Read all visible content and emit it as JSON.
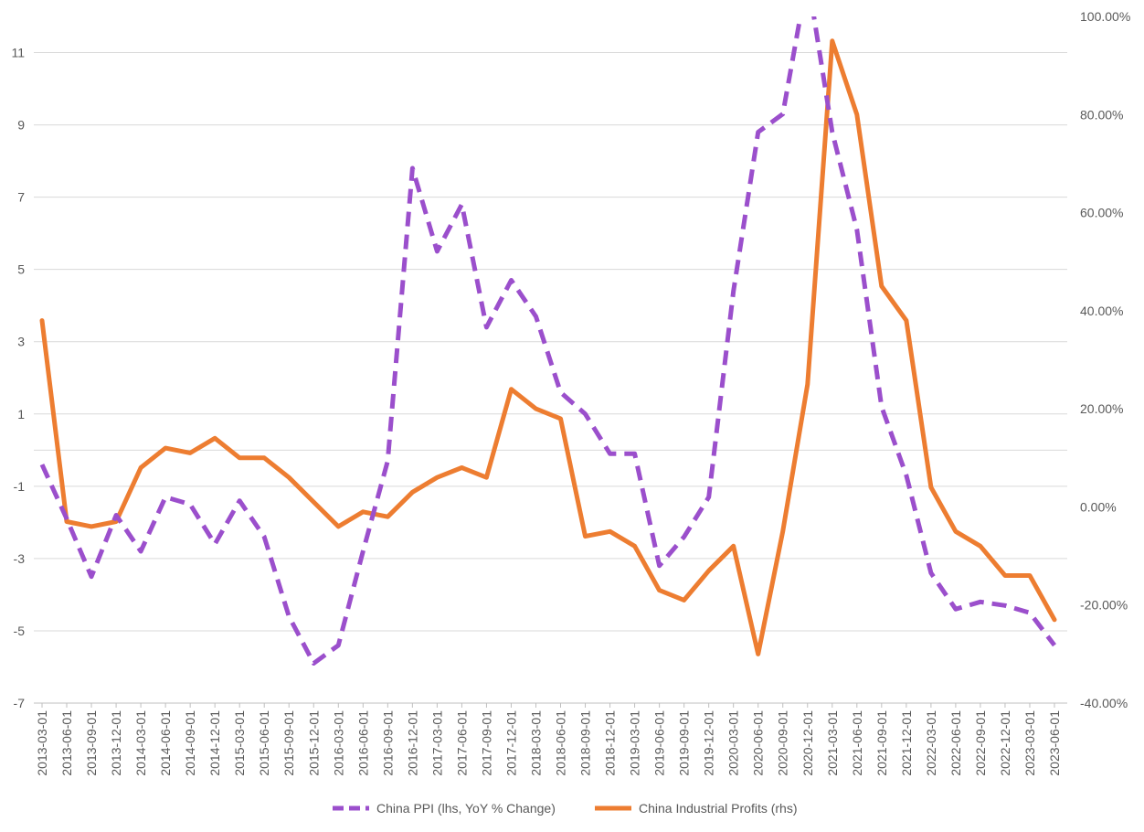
{
  "chart_data": {
    "type": "line",
    "x": [
      "2013-03-01",
      "2013-06-01",
      "2013-09-01",
      "2013-12-01",
      "2014-03-01",
      "2014-06-01",
      "2014-09-01",
      "2014-12-01",
      "2015-03-01",
      "2015-06-01",
      "2015-09-01",
      "2015-12-01",
      "2016-03-01",
      "2016-06-01",
      "2016-09-01",
      "2016-12-01",
      "2017-03-01",
      "2017-06-01",
      "2017-09-01",
      "2017-12-01",
      "2018-03-01",
      "2018-06-01",
      "2018-09-01",
      "2018-12-01",
      "2019-03-01",
      "2019-06-01",
      "2019-09-01",
      "2019-12-01",
      "2020-03-01",
      "2020-06-01",
      "2020-09-01",
      "2020-12-01",
      "2021-03-01",
      "2021-06-01",
      "2021-09-01",
      "2021-12-01",
      "2022-03-01",
      "2022-06-01",
      "2022-09-01",
      "2022-12-01",
      "2023-03-01",
      "2023-06-01"
    ],
    "y_left": {
      "min": -7,
      "max": 12,
      "ticks": [
        -7,
        -5,
        -3,
        -1,
        1,
        3,
        5,
        7,
        9,
        11
      ]
    },
    "y_right": {
      "min": -40,
      "max": 100,
      "ticks": [
        "-40.00%",
        "-20.00%",
        "0.00%",
        "20.00%",
        "40.00%",
        "60.00%",
        "80.00%",
        "100.00%"
      ],
      "tick_values": [
        -40,
        -20,
        0,
        20,
        40,
        60,
        80,
        100
      ]
    },
    "grid": true,
    "legend_position": "bottom",
    "series": [
      {
        "name": "China PPI (lhs, YoY % Change)",
        "axis": "left",
        "color": "#9B4FCC",
        "style": "dashed",
        "values": [
          -0.4,
          -1.9,
          -3.5,
          -1.8,
          -2.8,
          -1.3,
          -1.5,
          -2.6,
          -1.4,
          -2.4,
          -4.6,
          -5.9,
          -5.4,
          -2.8,
          -0.3,
          7.8,
          5.5,
          6.8,
          3.4,
          4.7,
          3.7,
          1.6,
          1.0,
          -0.1,
          -0.1,
          -3.2,
          -2.4,
          -1.3,
          4.4,
          8.8,
          9.3,
          13.1,
          8.8,
          6.1,
          1.2,
          -0.7,
          -3.4,
          -4.4,
          -4.2,
          -4.3,
          -4.5,
          -5.4
        ]
      },
      {
        "name": "China Industrial Profits (rhs)",
        "axis": "right",
        "color": "#ED7D31",
        "style": "solid",
        "values": [
          38,
          -3,
          -4,
          -3,
          8,
          12,
          11,
          14,
          10,
          10,
          6,
          1,
          -4,
          -1,
          -2,
          3,
          6,
          8,
          6,
          24,
          20,
          18,
          -6,
          -5,
          -8,
          -17,
          -19,
          -13,
          -8,
          -30,
          -5,
          25,
          95,
          80,
          45,
          38,
          4,
          -5,
          -8,
          -14,
          -14,
          -23
        ]
      }
    ]
  }
}
